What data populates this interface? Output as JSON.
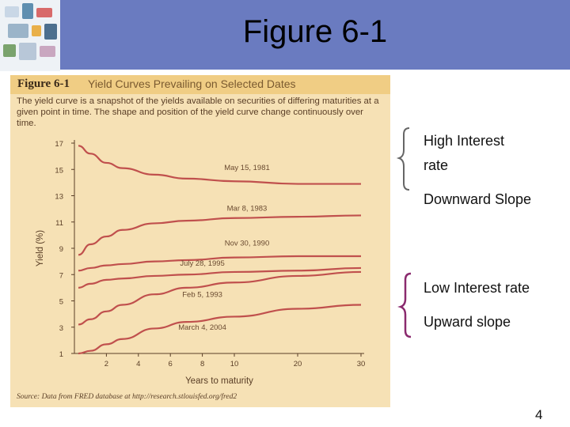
{
  "slide": {
    "title": "Figure 6-1",
    "page_number": "4"
  },
  "figure": {
    "number": "Figure 6-1",
    "title": "Yield Curves Prevailing on Selected Dates",
    "caption": "The yield curve is a snapshot of the yields available on securities of differing maturities at a given point in time. The shape and position of the yield curve change continuously over time.",
    "source": "Source: Data from FRED database at http://research.stlouisfed.org/fred2"
  },
  "annotations": [
    {
      "lines": [
        "High Interest",
        "rate"
      ],
      "color": "#555555"
    },
    {
      "lines": [
        "Downward Slope"
      ]
    },
    {
      "lines": [
        "Low Interest rate"
      ],
      "color": "#8a2a6e"
    },
    {
      "lines": [
        "Upward slope"
      ]
    }
  ],
  "chart_data": {
    "type": "line",
    "xlabel": "Years to maturity",
    "ylabel": "Yield (%)",
    "x_ticks": [
      2,
      4,
      6,
      8,
      10,
      20,
      30
    ],
    "y_ticks": [
      1,
      3,
      5,
      7,
      9,
      11,
      13,
      15,
      17
    ],
    "ylim": [
      1,
      17
    ],
    "line_color": "#c0504d",
    "series": [
      {
        "name": "May 15, 1981",
        "x": [
          0.25,
          1,
          2,
          3,
          5,
          7,
          10,
          20,
          30
        ],
        "y": [
          16.8,
          16.2,
          15.5,
          15.1,
          14.6,
          14.3,
          14.1,
          13.9,
          13.9
        ]
      },
      {
        "name": "Mar 8, 1983",
        "x": [
          0.25,
          1,
          2,
          3,
          5,
          7,
          10,
          20,
          30
        ],
        "y": [
          8.5,
          9.3,
          9.9,
          10.4,
          10.9,
          11.1,
          11.3,
          11.4,
          11.5
        ]
      },
      {
        "name": "Nov 30, 1990",
        "x": [
          0.25,
          1,
          2,
          3,
          5,
          7,
          10,
          20,
          30
        ],
        "y": [
          7.3,
          7.5,
          7.7,
          7.8,
          8.0,
          8.1,
          8.3,
          8.4,
          8.4
        ]
      },
      {
        "name": "July 28, 1995",
        "x": [
          0.25,
          1,
          2,
          3,
          5,
          7,
          10,
          20,
          30
        ],
        "y": [
          6.0,
          6.3,
          6.6,
          6.7,
          6.9,
          7.0,
          7.2,
          7.3,
          7.5
        ]
      },
      {
        "name": "Feb 5, 1993",
        "x": [
          0.25,
          1,
          2,
          3,
          5,
          7,
          10,
          20,
          30
        ],
        "y": [
          3.2,
          3.6,
          4.2,
          4.7,
          5.5,
          6.0,
          6.4,
          6.9,
          7.2
        ]
      },
      {
        "name": "March 4, 2004",
        "x": [
          0.25,
          1,
          2,
          3,
          5,
          7,
          10,
          20,
          30
        ],
        "y": [
          1.0,
          1.2,
          1.7,
          2.1,
          2.9,
          3.4,
          3.8,
          4.4,
          4.7
        ]
      }
    ]
  }
}
